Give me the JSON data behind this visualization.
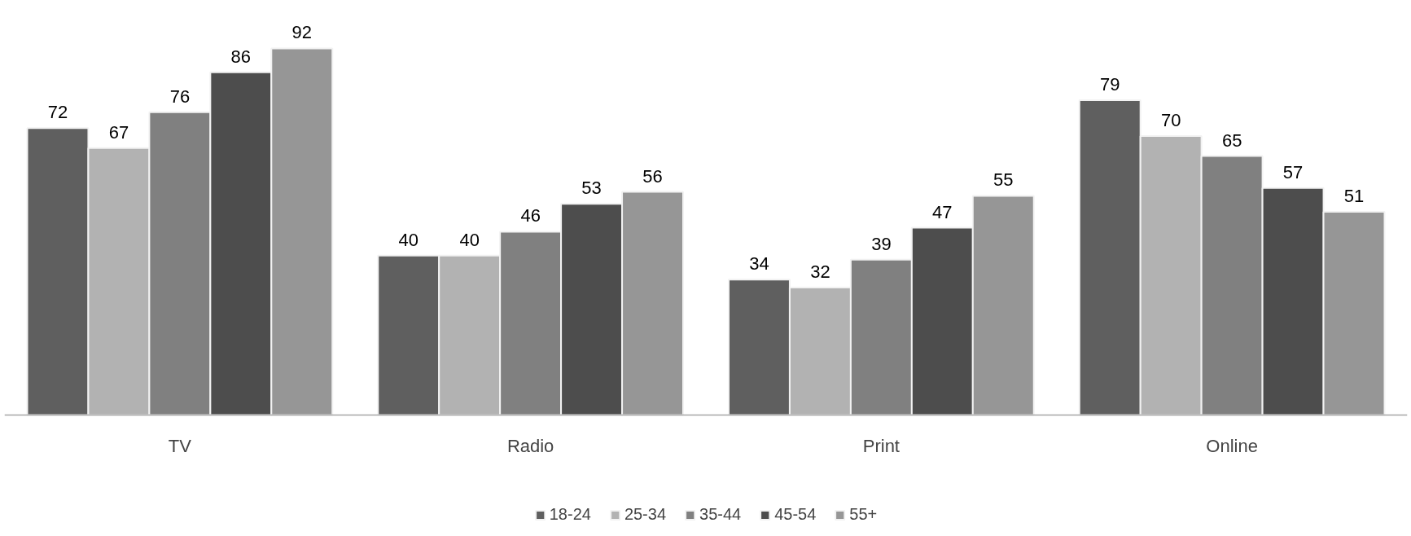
{
  "chart_data": {
    "type": "bar",
    "categories": [
      "TV",
      "Radio",
      "Print",
      "Online"
    ],
    "series": [
      {
        "name": "18-24",
        "color": "#5f5f5f",
        "values": [
          72,
          40,
          34,
          79
        ]
      },
      {
        "name": "25-34",
        "color": "#b2b2b2",
        "values": [
          67,
          40,
          32,
          70
        ]
      },
      {
        "name": "35-44",
        "color": "#808080",
        "values": [
          76,
          46,
          39,
          65
        ]
      },
      {
        "name": "45-54",
        "color": "#4d4d4d",
        "values": [
          86,
          53,
          47,
          57
        ]
      },
      {
        "name": "55+",
        "color": "#969696",
        "values": [
          92,
          56,
          55,
          51
        ]
      }
    ],
    "data_labels": true,
    "tick_labels": "x",
    "grid": false,
    "legend": "bottom"
  }
}
